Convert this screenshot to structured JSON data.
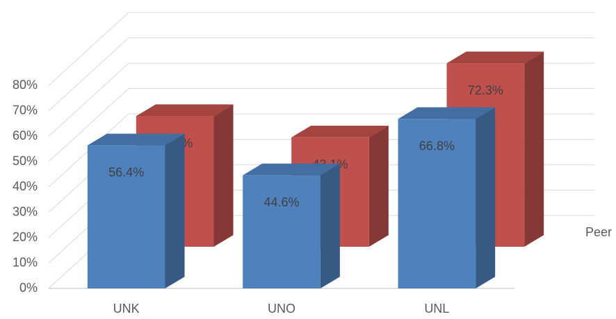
{
  "chart_data": {
    "type": "bar3d",
    "categories": [
      "UNK",
      "UNO",
      "UNL"
    ],
    "series": [
      {
        "name": "Peer",
        "color": "#c0504d",
        "values": [
          51.5,
          43.1,
          72.3
        ],
        "value_labels": [
          "51.5%",
          "43.1%",
          "72.3%"
        ]
      },
      {
        "color": "#4f81bd",
        "values": [
          56.4,
          44.6,
          66.8
        ],
        "value_labels": [
          "56.4%",
          "44.6%",
          "66.8%"
        ]
      }
    ],
    "ylim": [
      0,
      80
    ],
    "yticks": [
      {
        "value": 0,
        "label": "0%"
      },
      {
        "value": 10,
        "label": "10%"
      },
      {
        "value": 20,
        "label": "20%"
      },
      {
        "value": 30,
        "label": "30%"
      },
      {
        "value": 40,
        "label": "40%"
      },
      {
        "value": 50,
        "label": "50%"
      },
      {
        "value": 60,
        "label": "60%"
      },
      {
        "value": 70,
        "label": "70%"
      },
      {
        "value": 80,
        "label": "80%"
      }
    ],
    "grid": true
  }
}
